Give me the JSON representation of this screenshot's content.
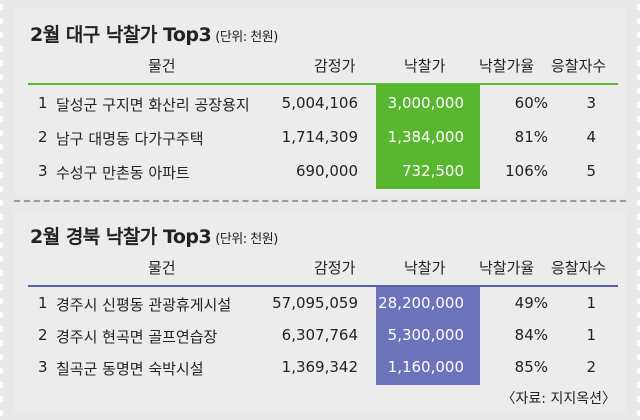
{
  "tables": [
    {
      "title": "2월 대구 낙찰가 Top3",
      "unit": "(단위: 천원)",
      "headers": [
        "물건",
        "감정가",
        "낙찰가",
        "낙찰가율",
        "응찰자수"
      ],
      "highlight_color": "#58b72f",
      "rows": [
        {
          "no": "1",
          "name": "달성군 구지면 화산리 공장용지",
          "appraisal": "5,004,106",
          "winning": "3,000,000",
          "rate": "60%",
          "bidders": "3"
        },
        {
          "no": "2",
          "name": "남구 대명동 다가구주택",
          "appraisal": "1,714,309",
          "winning": "1,384,000",
          "rate": "81%",
          "bidders": "4"
        },
        {
          "no": "3",
          "name": "수성구 만촌동 아파트",
          "appraisal": "690,000",
          "winning": "732,500",
          "rate": "106%",
          "bidders": "5"
        }
      ]
    },
    {
      "title": "2월 경북 낙찰가 Top3",
      "unit": "(단위: 천원)",
      "headers": [
        "물건",
        "감정가",
        "낙찰가",
        "낙찰가율",
        "응찰자수"
      ],
      "highlight_color": "#6b73ba",
      "rows": [
        {
          "no": "1",
          "name": "경주시 신평동 관광휴게시설",
          "appraisal": "57,095,059",
          "winning": "28,200,000",
          "rate": "49%",
          "bidders": "1"
        },
        {
          "no": "2",
          "name": "경주시 현곡면 골프연습장",
          "appraisal": "6,307,764",
          "winning": "5,300,000",
          "rate": "84%",
          "bidders": "1"
        },
        {
          "no": "3",
          "name": "칠곡군 동명면 숙박시설",
          "appraisal": "1,369,342",
          "winning": "1,160,000",
          "rate": "85%",
          "bidders": "2"
        }
      ]
    }
  ],
  "source": "〈자료: 지지옥션〉"
}
